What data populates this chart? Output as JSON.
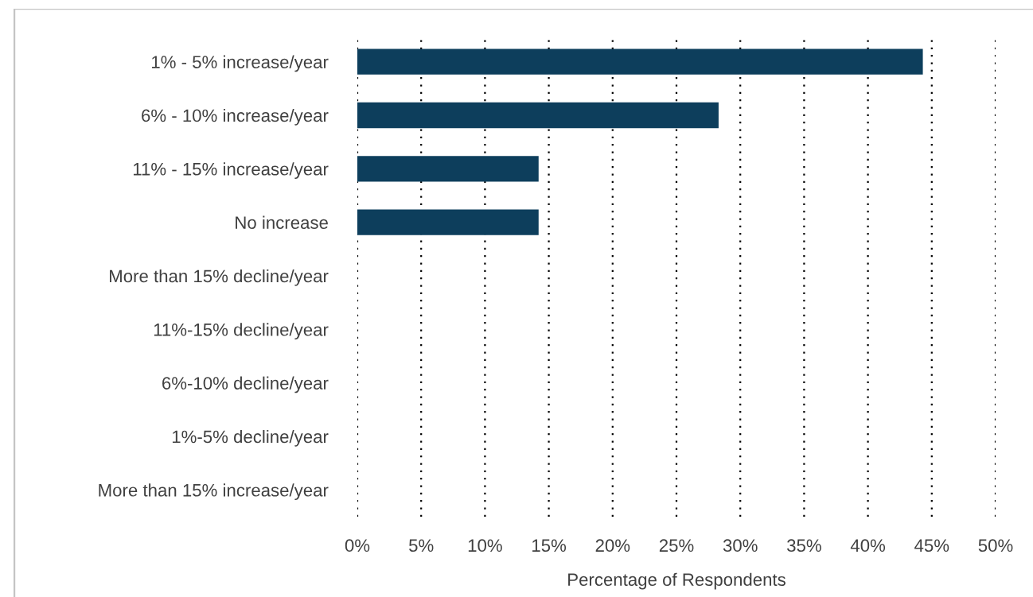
{
  "chart_data": {
    "type": "bar",
    "orientation": "horizontal",
    "categories": [
      "1% - 5% increase/year",
      "6% - 10% increase/year",
      "11% - 15% increase/year",
      "No increase",
      "More than 15% decline/year",
      "11%-15% decline/year",
      "6%-10% decline/year",
      "1%-5% decline/year",
      "More than 15% increase/year"
    ],
    "values": [
      44.3,
      28.3,
      14.2,
      14.2,
      0,
      0,
      0,
      0,
      0
    ],
    "color": "#0d3e5c",
    "xlim": [
      0,
      50
    ],
    "xticks": [
      {
        "value": 0,
        "label": "0%"
      },
      {
        "value": 5,
        "label": "5%"
      },
      {
        "value": 10,
        "label": "10%"
      },
      {
        "value": 15,
        "label": "15%"
      },
      {
        "value": 20,
        "label": "20%"
      },
      {
        "value": 25,
        "label": "25%"
      },
      {
        "value": 30,
        "label": "30%"
      },
      {
        "value": 35,
        "label": "35%"
      },
      {
        "value": 40,
        "label": "40%"
      },
      {
        "value": 45,
        "label": "45%"
      },
      {
        "value": 50,
        "label": "50%"
      }
    ],
    "xlabel": "Percentage of Respondents",
    "grid": "x"
  }
}
